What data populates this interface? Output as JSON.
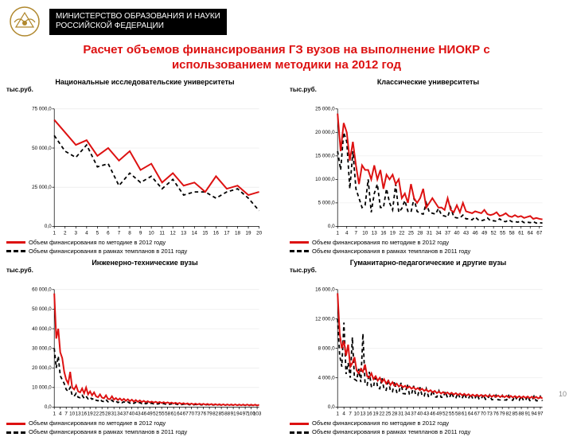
{
  "header": {
    "ministry_line1": "МИНИСТЕРСТВО ОБРАЗОВАНИЯ И НАУКИ",
    "ministry_line2": "РОССИЙСКОЙ ФЕДЕРАЦИИ"
  },
  "title": "Расчет объемов финансирования ГЗ вузов на выполнение НИОКР с использованием методики на 2012 год",
  "page_number": "10",
  "common": {
    "ylabel": "тыс.руб.",
    "legend_red": "Объем финансирования по методике в 2012 году",
    "legend_dash": "Объем финансирования в рамках темпланов в 2011 году",
    "color_red": "#d11",
    "color_dash": "#000",
    "background": "#ffffff",
    "grid_color": "#e6e6e6"
  },
  "charts": [
    {
      "title": "Национальные исследовательские университеты",
      "xticks": [
        1,
        2,
        3,
        4,
        5,
        6,
        7,
        8,
        9,
        10,
        11,
        12,
        13,
        14,
        15,
        16,
        17,
        18,
        19,
        20
      ],
      "ylim": [
        0,
        75000
      ],
      "ytick_step": 25000,
      "ytick_labels": [
        "0,0",
        "25 000,0",
        "50 000,0",
        "75 000,0"
      ],
      "series_red": [
        68000,
        60000,
        52000,
        55000,
        45000,
        50000,
        42000,
        48000,
        36000,
        40000,
        28000,
        34000,
        26000,
        28000,
        22000,
        32000,
        24000,
        26000,
        20000,
        22000
      ],
      "series_dash": [
        58000,
        48000,
        44000,
        52000,
        38000,
        40000,
        26000,
        34000,
        28000,
        32000,
        24000,
        30000,
        20000,
        22000,
        22000,
        18000,
        22000,
        24000,
        18000,
        10000
      ]
    },
    {
      "title": "Классические университеты",
      "xticks": [
        1,
        4,
        7,
        10,
        13,
        16,
        19,
        22,
        25,
        28,
        31,
        34,
        37,
        40,
        43,
        46,
        49,
        52,
        55,
        58,
        61,
        64,
        67
      ],
      "xmax": 68,
      "ylim": [
        0,
        25000
      ],
      "ytick_step": 5000,
      "ytick_labels": [
        "0,0",
        "5 000,0",
        "10 000,0",
        "15 000,0",
        "20 000,0",
        "25 000,0"
      ],
      "series_red": [
        24000,
        16000,
        22000,
        20000,
        14000,
        18000,
        13000,
        9000,
        13000,
        12000,
        12000,
        10000,
        13000,
        10000,
        12000,
        8000,
        11000,
        10000,
        11000,
        9000,
        10000,
        6000,
        7000,
        5000,
        9000,
        6000,
        5000,
        6000,
        8000,
        4000,
        5000,
        6000,
        5000,
        4000,
        4000,
        3500,
        6000,
        3500,
        3000,
        4500,
        3000,
        5000,
        3200,
        3000,
        2800,
        3200,
        3000,
        2800,
        3500,
        2600,
        2400,
        2600,
        3000,
        2200,
        2400,
        2800,
        2200,
        2000,
        2400,
        2000,
        2200,
        1800,
        2000,
        2200,
        1600,
        1800,
        1600,
        1500
      ],
      "series_dash": [
        16000,
        12000,
        20000,
        18000,
        8000,
        16000,
        8000,
        6000,
        4000,
        4500,
        10000,
        3000,
        7000,
        9000,
        4000,
        4000,
        8000,
        5000,
        3500,
        9000,
        3000,
        3800,
        5500,
        3200,
        3000,
        6000,
        3200,
        2800,
        2600,
        5000,
        3000,
        2800,
        2600,
        3800,
        2400,
        2200,
        2000,
        4000,
        2000,
        1800,
        1800,
        2400,
        1600,
        1600,
        1400,
        2000,
        1400,
        1200,
        1400,
        1800,
        1200,
        1200,
        1100,
        1600,
        1100,
        1000,
        1400,
        1000,
        1000,
        900,
        1200,
        800,
        900,
        800,
        1000,
        700,
        800,
        700
      ]
    },
    {
      "title": "Инженерно-технические вузы",
      "xticks": [
        1,
        4,
        7,
        10,
        13,
        16,
        19,
        22,
        25,
        28,
        31,
        34,
        37,
        40,
        43,
        46,
        49,
        52,
        55,
        58,
        61,
        64,
        67,
        70,
        73,
        76,
        79,
        82,
        85,
        88,
        91,
        94,
        97,
        100,
        103
      ],
      "xmax": 104,
      "ylim": [
        0,
        60000
      ],
      "ytick_step": 10000,
      "ytick_labels": [
        "0,0",
        "10 000,0",
        "20 000,0",
        "30 000,0",
        "40 000,0",
        "50 000,0",
        "60 000,0"
      ],
      "series_red": [
        58000,
        35000,
        40000,
        28000,
        25000,
        18000,
        14000,
        12000,
        18000,
        10000,
        9000,
        11000,
        8000,
        7500,
        9500,
        7000,
        10000,
        6500,
        8000,
        6000,
        7500,
        5500,
        5000,
        6500,
        4800,
        4500,
        6000,
        4200,
        4000,
        5500,
        3800,
        4600,
        3600,
        4400,
        3400,
        4200,
        3200,
        4000,
        3000,
        3800,
        2800,
        3600,
        2700,
        3400,
        2600,
        3200,
        2500,
        3000,
        2400,
        2800,
        2300,
        2700,
        2200,
        2600,
        2100,
        2500,
        2000,
        2400,
        1900,
        2300,
        1800,
        2200,
        1700,
        2100,
        1600,
        2000,
        1500,
        1900,
        1400,
        1800,
        1350,
        1750,
        1300,
        1700,
        1250,
        1650,
        1200,
        1600,
        1150,
        1550,
        1100,
        1500,
        1050,
        1450,
        1000,
        1400,
        980,
        1380,
        960,
        1360,
        940,
        1340,
        920,
        1320,
        900,
        1300,
        880,
        1280,
        860,
        1260,
        840,
        1240,
        820,
        1220
      ],
      "series_dash": [
        30000,
        20000,
        26000,
        16000,
        14000,
        12000,
        9000,
        8000,
        10000,
        6000,
        5500,
        7000,
        5000,
        4800,
        6000,
        4500,
        5500,
        4200,
        5000,
        4000,
        4500,
        3500,
        3200,
        4000,
        3000,
        2800,
        3800,
        2700,
        2600,
        3500,
        2500,
        3000,
        2300,
        2800,
        2200,
        2700,
        2100,
        2600,
        2000,
        2500,
        1900,
        2400,
        1800,
        2300,
        1750,
        2200,
        1700,
        2100,
        1650,
        2000,
        1600,
        1900,
        1550,
        1850,
        1500,
        1800,
        1450,
        1750,
        1400,
        1700,
        1350,
        1650,
        1300,
        1600,
        1250,
        1550,
        1200,
        1500,
        1150,
        1450,
        1100,
        1400,
        1080,
        1380,
        1060,
        1360,
        1040,
        1340,
        1020,
        1320,
        1000,
        1300,
        980,
        1280,
        960,
        1260,
        940,
        1240,
        920,
        1220,
        900,
        1200,
        880,
        1180,
        860,
        1160,
        840,
        1140,
        820,
        1120,
        800,
        1100,
        780,
        1080,
        760
      ]
    },
    {
      "title": "Гуманитарно-педагогические и другие вузы",
      "xticks": [
        1,
        4,
        7,
        10,
        13,
        16,
        19,
        22,
        25,
        28,
        31,
        34,
        37,
        40,
        43,
        46,
        49,
        52,
        55,
        58,
        61,
        64,
        67,
        70,
        73,
        76,
        79,
        82,
        85,
        88,
        91,
        94,
        97
      ],
      "xmax": 98,
      "ylim": [
        0,
        16000
      ],
      "ytick_step": 4000,
      "ytick_labels": [
        "0,0",
        "4 000,0",
        "8 000,0",
        "12 000,0",
        "16 000,0"
      ],
      "series_red": [
        15500,
        10000,
        8000,
        9000,
        7000,
        8500,
        5500,
        6000,
        6800,
        5000,
        4600,
        5200,
        4800,
        5800,
        4200,
        4000,
        4600,
        3800,
        4200,
        3600,
        4000,
        3400,
        3800,
        3200,
        3600,
        3000,
        3400,
        2900,
        3200,
        2800,
        3000,
        2700,
        2900,
        2600,
        2800,
        2500,
        2700,
        2400,
        2600,
        2300,
        2500,
        2200,
        2400,
        2100,
        2300,
        2000,
        2200,
        1900,
        2100,
        1850,
        2050,
        1800,
        2000,
        1750,
        1950,
        1700,
        1900,
        1650,
        1850,
        1600,
        1800,
        1550,
        1750,
        1500,
        1700,
        1480,
        1680,
        1460,
        1660,
        1440,
        1640,
        1420,
        1620,
        1400,
        1600,
        1380,
        1580,
        1360,
        1560,
        1340,
        1540,
        1320,
        1520,
        1300,
        1500,
        1280,
        1480,
        1260,
        1460,
        1240,
        1440,
        1220,
        1420,
        1200,
        1400,
        1180,
        1380,
        1160
      ],
      "series_dash": [
        12000,
        7000,
        5500,
        11500,
        4500,
        6000,
        4000,
        9500,
        3800,
        3600,
        5200,
        3400,
        10000,
        3200,
        3000,
        4800,
        2800,
        2700,
        4400,
        2600,
        2500,
        4000,
        2400,
        2300,
        3800,
        2200,
        2100,
        3500,
        2000,
        1900,
        3300,
        1850,
        1800,
        3100,
        1750,
        1700,
        2900,
        1650,
        1600,
        2700,
        1550,
        1500,
        2500,
        1450,
        1400,
        2300,
        1380,
        1360,
        2200,
        1340,
        1320,
        2100,
        1300,
        1280,
        2000,
        1260,
        1240,
        1900,
        1220,
        1200,
        1850,
        1180,
        1160,
        1800,
        1140,
        1120,
        1750,
        1100,
        1080,
        1700,
        1060,
        1040,
        1650,
        1020,
        1000,
        1600,
        990,
        980,
        1580,
        970,
        960,
        1560,
        950,
        940,
        1540,
        930,
        920,
        1520,
        910,
        900,
        1500,
        890,
        880,
        1480,
        870,
        860,
        1460,
        850
      ]
    }
  ]
}
